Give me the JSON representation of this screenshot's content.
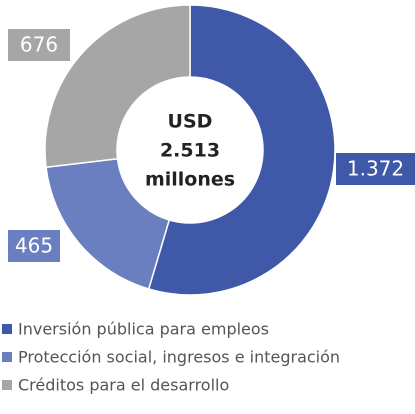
{
  "chart_data": {
    "type": "donut",
    "categories": [
      "Inversión pública para empleos",
      "Protección social, ingresos e integración",
      "Créditos para el desarrollo"
    ],
    "values": [
      1372,
      465,
      676
    ],
    "value_labels": [
      "1.372",
      "465",
      "676"
    ],
    "colors": [
      "#3f58a8",
      "#6a7fc0",
      "#a6a6a6"
    ],
    "center_label": [
      "USD",
      "2.513",
      "millones"
    ]
  }
}
